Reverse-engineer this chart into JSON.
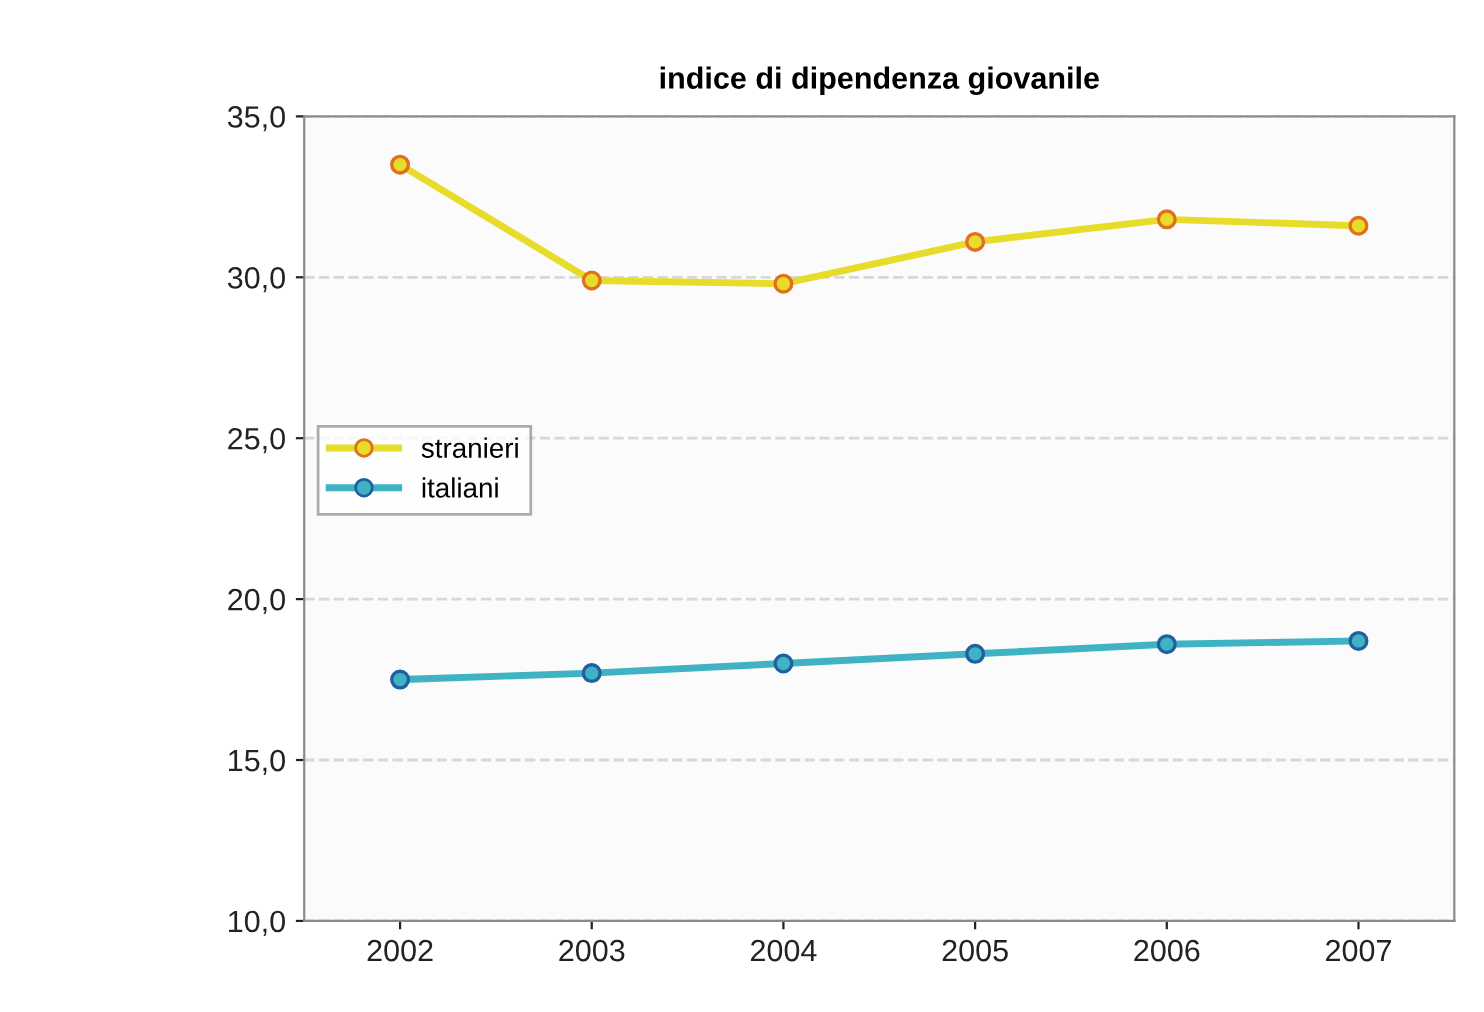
{
  "chart_data": {
    "type": "line",
    "title": "indice di dipendenza giovanile",
    "categories": [
      "2002",
      "2003",
      "2004",
      "2005",
      "2006",
      "2007"
    ],
    "series": [
      {
        "name": "stranieri",
        "color": "#e8dc2a",
        "values": [
          33.5,
          29.9,
          29.8,
          31.1,
          31.8,
          31.6
        ]
      },
      {
        "name": "italiani",
        "color": "#3fb3c4",
        "values": [
          17.5,
          17.7,
          18.0,
          18.3,
          18.6,
          18.7
        ]
      }
    ],
    "ylim": [
      10,
      35
    ],
    "yticks": [
      {
        "value": 10,
        "label": "10,0"
      },
      {
        "value": 15,
        "label": "15,0"
      },
      {
        "value": 20,
        "label": "20,0"
      },
      {
        "value": 25,
        "label": "25,0"
      },
      {
        "value": 30,
        "label": "30,0"
      },
      {
        "value": 35,
        "label": "35,0"
      }
    ],
    "grid": "y",
    "legend": "left",
    "marker": "circle",
    "line_style": "solid"
  }
}
